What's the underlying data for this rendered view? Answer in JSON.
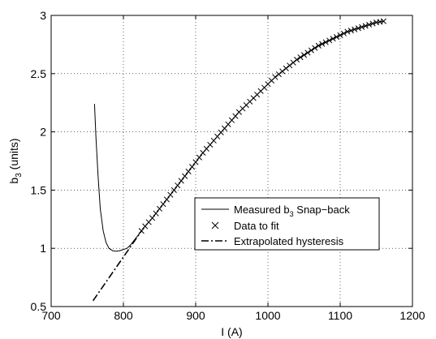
{
  "chart_data": {
    "type": "line",
    "xlabel": "I (A)",
    "ylabel": {
      "base": "b",
      "sub": "3",
      "rest": " (units)"
    },
    "xlim": [
      700,
      1200
    ],
    "ylim": [
      0.5,
      3
    ],
    "xticks": [
      700,
      800,
      900,
      1000,
      1100,
      1200
    ],
    "yticks": [
      0.5,
      1,
      1.5,
      2,
      2.5,
      3
    ],
    "xtick_labels": [
      "700",
      "800",
      "900",
      "1000",
      "1100",
      "1200"
    ],
    "ytick_labels": [
      "0.5",
      "1",
      "1.5",
      "2",
      "2.5",
      "3"
    ],
    "grid": true,
    "grid_style": "dotted",
    "legend_position": "lower-right",
    "series": [
      {
        "name": "Measured b3 Snap-back",
        "legend_label": {
          "base": "Measured b",
          "sub": "3",
          "rest": " Snap−back"
        },
        "style": "solid",
        "color": "#000000",
        "x": [
          760,
          762,
          765,
          768,
          772,
          776,
          780,
          785,
          790,
          795,
          800,
          805,
          810,
          815,
          820,
          825,
          830,
          840,
          850,
          860,
          870,
          880,
          890,
          900,
          910,
          920,
          930,
          940,
          950,
          960,
          970,
          980,
          990,
          1000,
          1010,
          1020,
          1030,
          1040,
          1050,
          1060,
          1070,
          1080,
          1090,
          1100,
          1110,
          1120,
          1130,
          1140,
          1150,
          1160
        ],
        "y": [
          2.24,
          1.95,
          1.62,
          1.34,
          1.15,
          1.05,
          1.0,
          0.98,
          0.975,
          0.98,
          0.99,
          1.0,
          1.03,
          1.07,
          1.11,
          1.15,
          1.19,
          1.26,
          1.34,
          1.42,
          1.5,
          1.58,
          1.66,
          1.74,
          1.82,
          1.89,
          1.96,
          2.03,
          2.1,
          2.17,
          2.23,
          2.29,
          2.35,
          2.41,
          2.47,
          2.52,
          2.57,
          2.62,
          2.66,
          2.7,
          2.74,
          2.77,
          2.8,
          2.83,
          2.86,
          2.88,
          2.9,
          2.92,
          2.94,
          2.95
        ]
      },
      {
        "name": "Data to fit",
        "style": "markers-x",
        "color": "#000000",
        "x": [
          825,
          830,
          835,
          840,
          845,
          850,
          855,
          860,
          865,
          870,
          875,
          880,
          885,
          890,
          895,
          900,
          905,
          910,
          915,
          920,
          925,
          930,
          935,
          940,
          945,
          950,
          955,
          960,
          965,
          970,
          975,
          980,
          985,
          990,
          995,
          1000,
          1005,
          1010,
          1015,
          1020,
          1025,
          1030,
          1035,
          1040,
          1045,
          1050,
          1055,
          1060,
          1065,
          1070,
          1075,
          1080,
          1085,
          1090,
          1095,
          1100,
          1105,
          1110,
          1115,
          1120,
          1125,
          1130,
          1135,
          1140,
          1145,
          1150,
          1155,
          1160
        ],
        "y": [
          1.15,
          1.19,
          1.225,
          1.26,
          1.3,
          1.34,
          1.38,
          1.42,
          1.46,
          1.5,
          1.54,
          1.58,
          1.62,
          1.66,
          1.7,
          1.74,
          1.78,
          1.82,
          1.855,
          1.89,
          1.925,
          1.96,
          1.995,
          2.03,
          2.065,
          2.1,
          2.135,
          2.17,
          2.2,
          2.23,
          2.26,
          2.29,
          2.32,
          2.35,
          2.38,
          2.41,
          2.44,
          2.47,
          2.495,
          2.52,
          2.545,
          2.57,
          2.595,
          2.62,
          2.64,
          2.66,
          2.68,
          2.7,
          2.72,
          2.74,
          2.755,
          2.77,
          2.785,
          2.8,
          2.815,
          2.83,
          2.845,
          2.86,
          2.87,
          2.88,
          2.89,
          2.9,
          2.91,
          2.92,
          2.93,
          2.94,
          2.945,
          2.95
        ]
      },
      {
        "name": "Extrapolated hysteresis",
        "style": "dashdot",
        "color": "#000000",
        "x": [
          758,
          825
        ],
        "y": [
          0.55,
          1.15
        ]
      }
    ]
  }
}
